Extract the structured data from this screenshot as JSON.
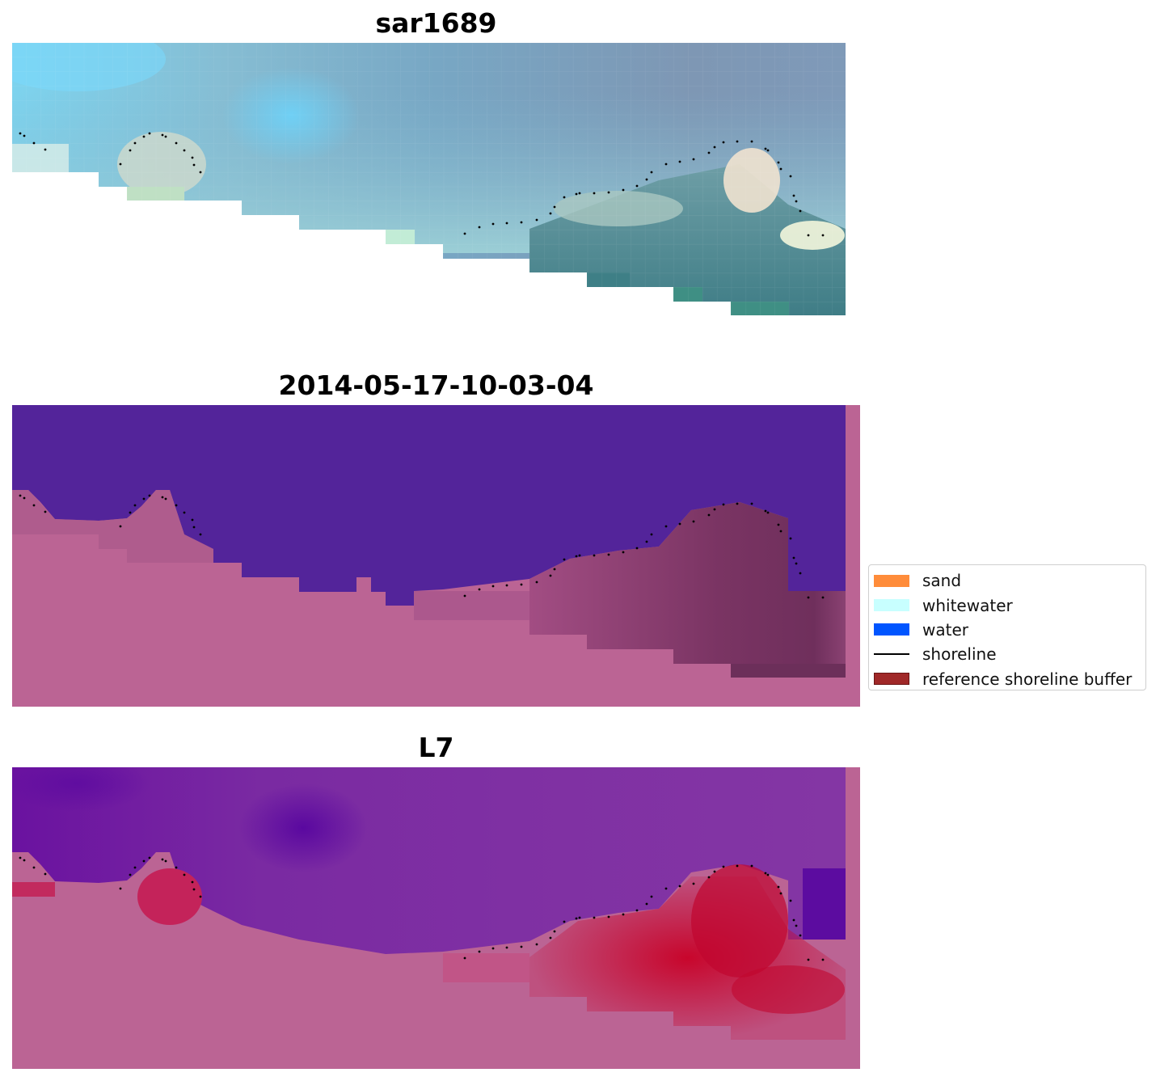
{
  "panels": [
    {
      "title": "sar1689",
      "kind": "rgb"
    },
    {
      "title": "2014-05-17-10-03-04",
      "kind": "classification"
    },
    {
      "title": "L7",
      "kind": "index"
    }
  ],
  "legend": {
    "items": [
      {
        "label": "sand",
        "color": "#ff8c3a"
      },
      {
        "label": "whitewater",
        "color": "#c8ffff"
      },
      {
        "label": "water",
        "color": "#0055ff"
      },
      {
        "label": "shoreline",
        "color": "#000000"
      },
      {
        "label": "reference shoreline buffer",
        "color": "#a02828"
      }
    ]
  },
  "colors": {
    "water_class": "#53249a",
    "buffer_mask": "#bb6494",
    "land_dark": "#7a3463",
    "index_water": "#6a12a0",
    "index_land": "#c8103c"
  }
}
